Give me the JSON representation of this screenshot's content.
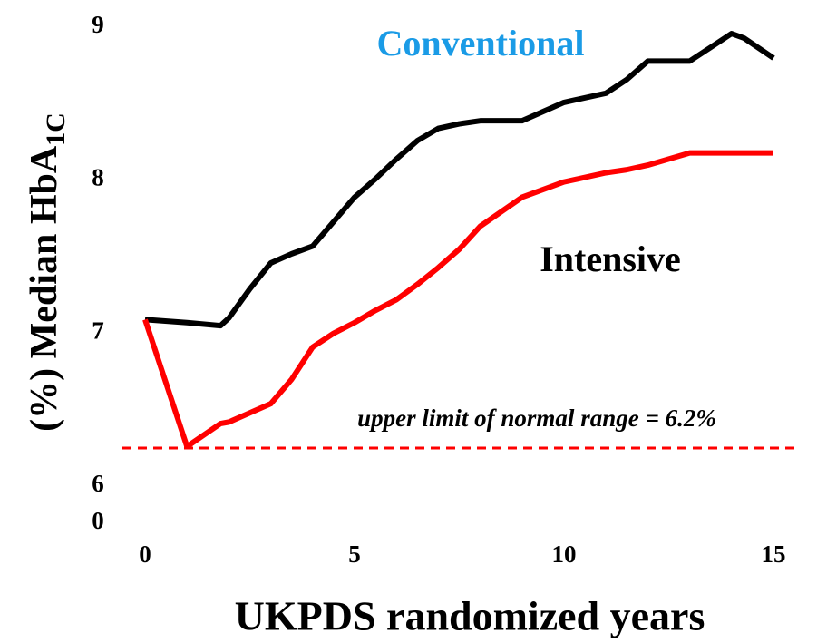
{
  "chart_data": {
    "type": "line",
    "x_label": "UKPDS randomized years",
    "y_label": "(%) Median HbA",
    "y_label_subscript": "1C",
    "x": [
      0,
      1,
      1.8,
      2,
      2.5,
      3,
      3.5,
      4,
      4.5,
      5,
      5.5,
      6,
      6.5,
      7,
      7.5,
      8,
      9,
      10,
      11,
      11.5,
      12,
      13,
      13.5,
      14,
      14.3,
      15
    ],
    "series": [
      {
        "name": "Conventional",
        "color": "#000000",
        "label_color": "#1a9be6",
        "values": [
          7.04,
          7.02,
          7.0,
          7.05,
          7.24,
          7.41,
          7.47,
          7.52,
          7.68,
          7.84,
          7.96,
          8.09,
          8.21,
          8.29,
          8.32,
          8.34,
          8.34,
          8.46,
          8.52,
          8.61,
          8.73,
          8.73,
          8.82,
          8.91,
          8.88,
          8.75
        ]
      },
      {
        "name": "Intensive",
        "color": "#ff0000",
        "label_color": "#000000",
        "values": [
          7.04,
          6.21,
          6.36,
          6.37,
          6.43,
          6.49,
          6.65,
          6.86,
          6.95,
          7.02,
          7.1,
          7.17,
          7.27,
          7.38,
          7.5,
          7.65,
          7.84,
          7.94,
          8.0,
          8.02,
          8.05,
          8.13,
          8.13,
          8.13,
          8.13,
          8.13
        ]
      }
    ],
    "reference_line": {
      "value": 6.2,
      "color": "#ff0000",
      "label": "upper limit of normal range = 6.2%"
    },
    "xlim": [
      0,
      15
    ],
    "xticks": [
      0,
      5,
      10,
      15
    ],
    "ylim": [
      5.8,
      9.1
    ],
    "yticks": [
      6,
      7,
      8,
      9
    ],
    "axis_break_label": "0",
    "grid": false
  }
}
